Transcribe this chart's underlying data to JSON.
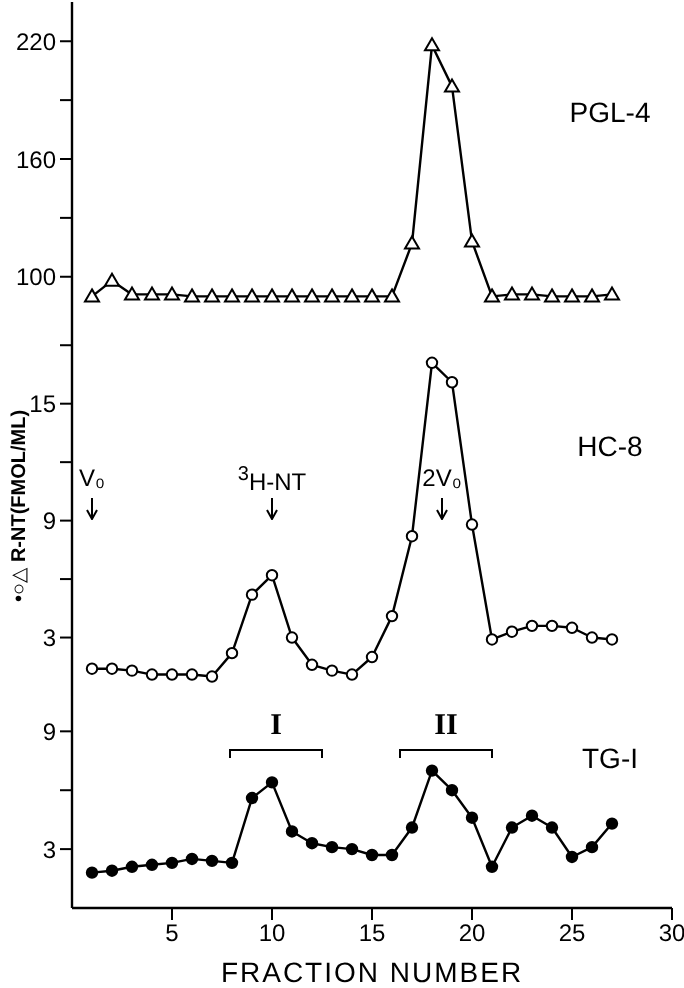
{
  "chart_data": [
    {
      "type": "line",
      "x": [
        1,
        2,
        3,
        4,
        5,
        6,
        7,
        8,
        9,
        10,
        11,
        12,
        13,
        14,
        15,
        16,
        17,
        18,
        19,
        20,
        21,
        22,
        23,
        24,
        25,
        26,
        27
      ],
      "series": [
        {
          "color": "#000000",
          "values": [
            90,
            98,
            91,
            91,
            91,
            90,
            90,
            90,
            90,
            90,
            90,
            90,
            90,
            90,
            90,
            90,
            117,
            218,
            197,
            118,
            90,
            91,
            91,
            90,
            90,
            90,
            91
          ]
        }
      ],
      "xlim": [
        0,
        30
      ],
      "xticks": [
        5,
        10,
        15,
        20,
        25,
        30
      ],
      "ylim": [
        80,
        240
      ],
      "yticks": [
        100,
        {
          "value": 130,
          "label": null
        },
        160,
        {
          "value": 190,
          "label": null
        },
        220
      ],
      "tick_labels": "y",
      "marker": "triangle",
      "annotations": [
        "PGL-4"
      ]
    },
    {
      "type": "line",
      "x": [
        1,
        2,
        3,
        4,
        5,
        6,
        7,
        8,
        9,
        10,
        11,
        12,
        13,
        14,
        15,
        16,
        17,
        18,
        19,
        20,
        21,
        22,
        23,
        24,
        25,
        26,
        27
      ],
      "series": [
        {
          "color": "#000000",
          "values": [
            1.4,
            1.4,
            1.3,
            1.1,
            1.1,
            1.1,
            1.0,
            2.2,
            5.2,
            6.2,
            3.0,
            1.6,
            1.3,
            1.1,
            2.0,
            4.1,
            8.2,
            17.1,
            16.1,
            8.8,
            2.9,
            3.3,
            3.6,
            3.6,
            3.5,
            3.0,
            2.9
          ]
        }
      ],
      "xlim": [
        0,
        30
      ],
      "xticks": [
        5,
        10,
        15,
        20,
        25,
        30
      ],
      "ylim": [
        0,
        19.5
      ],
      "yticks": [
        3,
        {
          "value": 6,
          "label": null
        },
        9,
        {
          "value": 12,
          "label": null
        },
        15,
        {
          "value": 18,
          "label": null
        }
      ],
      "tick_labels": "y",
      "marker": "circle",
      "ylabel": "•○△ R-NT(FMOL/ML)",
      "annotations": [
        "HC-8",
        "V₀",
        "$^{3}$H-NT",
        "2V₀"
      ]
    },
    {
      "type": "line",
      "x": [
        1,
        2,
        3,
        4,
        5,
        6,
        7,
        8,
        9,
        10,
        11,
        12,
        13,
        14,
        15,
        16,
        17,
        18,
        19,
        20,
        21,
        22,
        23,
        24,
        25,
        26,
        27
      ],
      "series": [
        {
          "color": "#000000",
          "values": [
            1.8,
            1.9,
            2.1,
            2.2,
            2.3,
            2.5,
            2.4,
            2.3,
            5.6,
            6.4,
            3.9,
            3.3,
            3.1,
            3.0,
            2.7,
            2.7,
            4.1,
            7.0,
            6.0,
            4.6,
            2.1,
            4.1,
            4.7,
            4.1,
            2.6,
            3.1,
            4.3
          ]
        }
      ],
      "xlim": [
        0,
        30
      ],
      "xticks": [
        5,
        10,
        15,
        20,
        25,
        30
      ],
      "ylim": [
        0,
        10.8
      ],
      "yticks": [
        3,
        {
          "value": 6,
          "label": null
        },
        9
      ],
      "marker": "circle",
      "xlabel": "FRACTION NUMBER",
      "annotations": [
        "TG-I",
        "I",
        "II"
      ]
    }
  ]
}
